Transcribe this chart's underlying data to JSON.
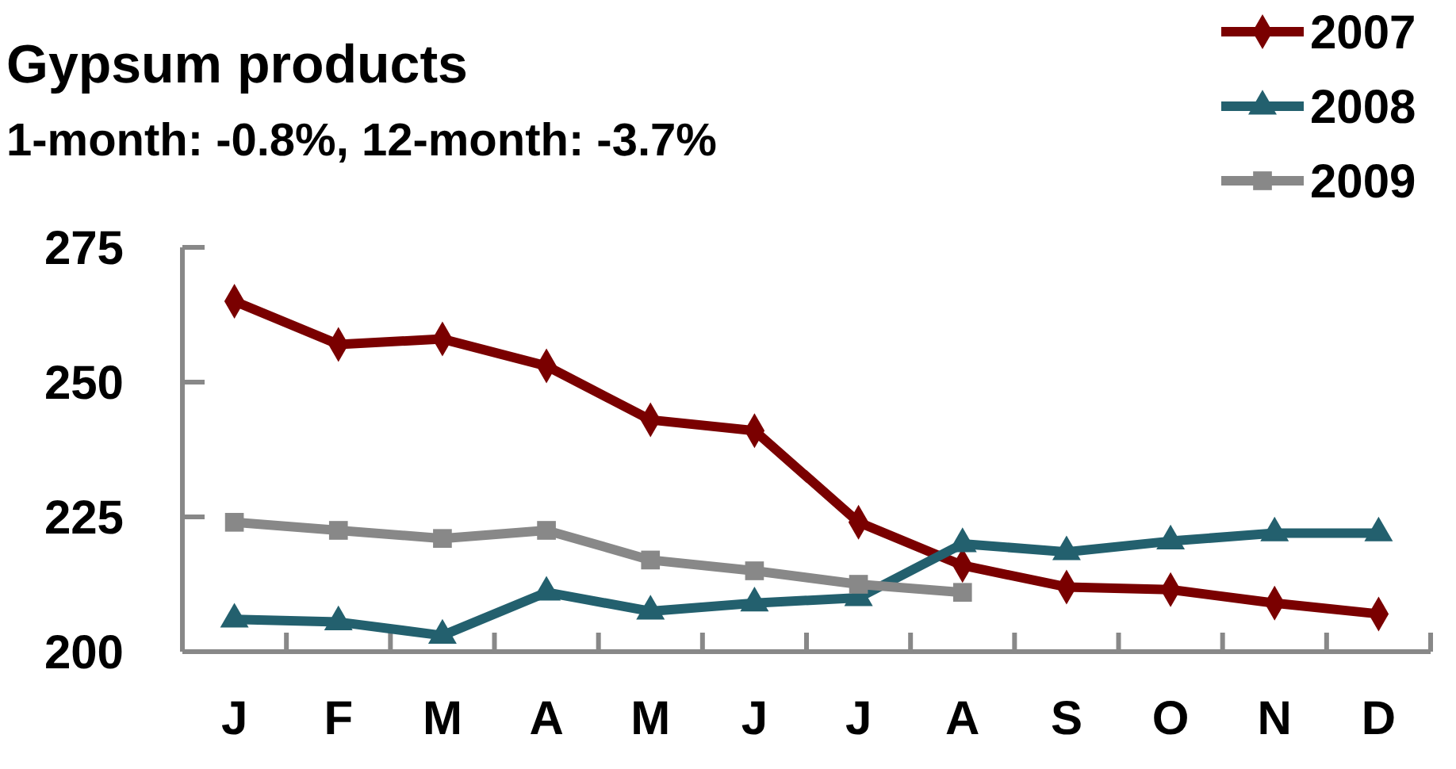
{
  "chart_data": {
    "type": "line",
    "title": "Gypsum products",
    "subtitle": "1-month: -0.8%, 12-month: -3.7%",
    "categories": [
      "J",
      "F",
      "M",
      "A",
      "M",
      "J",
      "J",
      "A",
      "S",
      "O",
      "N",
      "D"
    ],
    "series": [
      {
        "name": "2007",
        "color": "#7a0000",
        "marker": "diamond",
        "values": [
          265,
          257,
          258,
          253,
          243,
          241,
          224,
          216,
          212,
          211.5,
          209,
          207
        ]
      },
      {
        "name": "2008",
        "color": "#23606e",
        "marker": "triangle",
        "values": [
          206,
          205.5,
          203,
          211,
          207.5,
          209,
          210,
          220,
          218.5,
          220.5,
          222,
          222
        ]
      },
      {
        "name": "2009",
        "color": "#888888",
        "marker": "square",
        "values": [
          224,
          222.5,
          221,
          222.5,
          217,
          215,
          212.5,
          211,
          null,
          null,
          null,
          null
        ]
      }
    ],
    "ylim": [
      200,
      275
    ],
    "yticks": [
      200,
      225,
      250,
      275
    ],
    "grid": false,
    "legend": "top right",
    "line_style": "solid"
  }
}
